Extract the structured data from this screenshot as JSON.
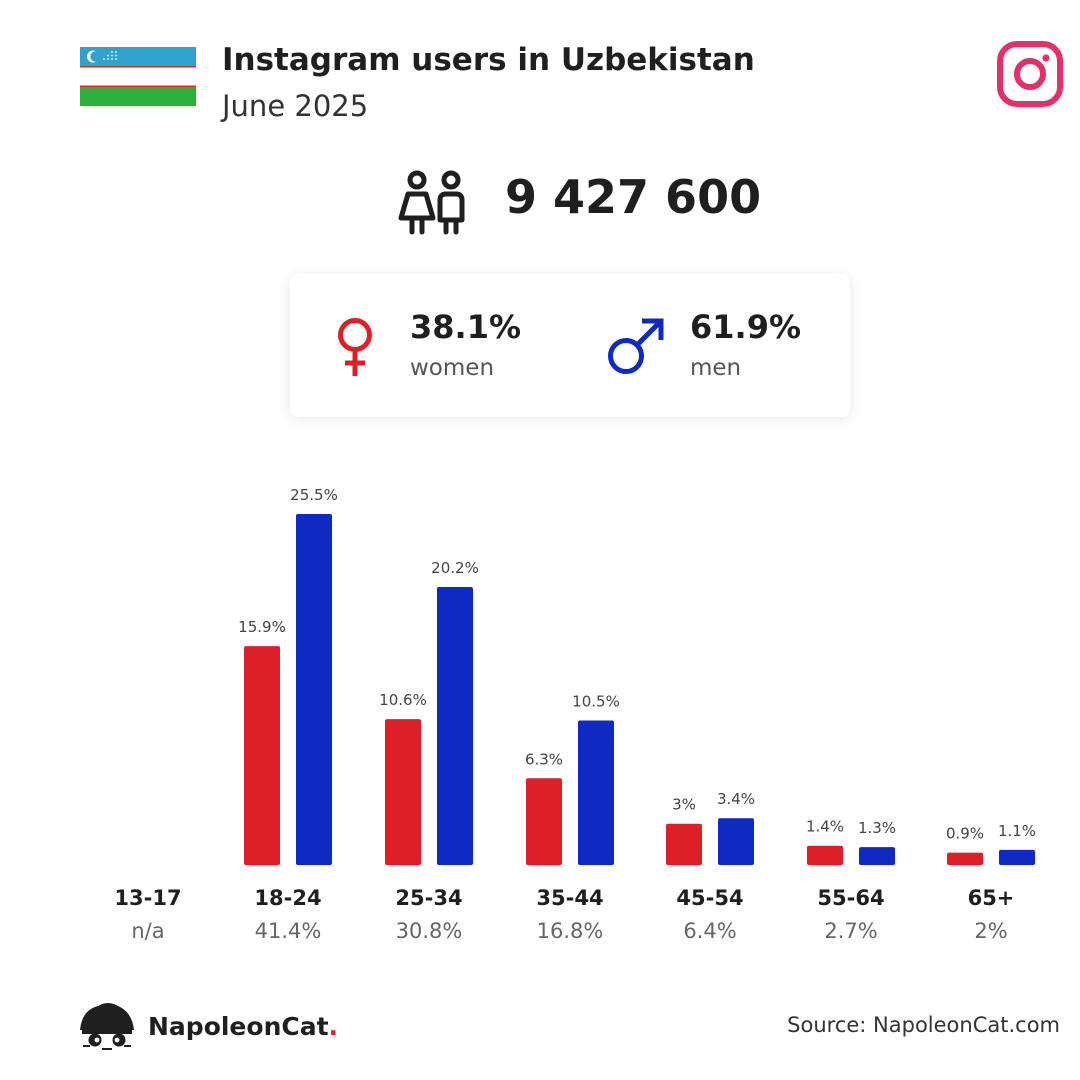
{
  "header": {
    "title": "Instagram users in Uzbekistan",
    "subtitle": "June 2025"
  },
  "total": {
    "value": "9 427 600"
  },
  "gender": {
    "women": {
      "value": "38.1%",
      "label": "women"
    },
    "men": {
      "value": "61.9%",
      "label": "men"
    }
  },
  "colors": {
    "women": "#dd1f28",
    "men": "#0f2ac2",
    "instagram": "#e1306c"
  },
  "footer": {
    "brand": "NapoleonCat",
    "brand_dot": ".",
    "source": "Source: NapoleonCat.com"
  },
  "chart_data": {
    "type": "bar",
    "categories": [
      "13-17",
      "18-24",
      "25-34",
      "35-44",
      "45-54",
      "55-64",
      "65+"
    ],
    "totals": [
      "n/a",
      "41.4%",
      "30.8%",
      "16.8%",
      "6.4%",
      "2.7%",
      "2%"
    ],
    "series": [
      {
        "name": "women",
        "values": [
          null,
          15.9,
          10.6,
          6.3,
          3,
          1.4,
          0.9
        ],
        "labels": [
          "",
          "15.9%",
          "10.6%",
          "6.3%",
          "3%",
          "1.4%",
          "0.9%"
        ]
      },
      {
        "name": "men",
        "values": [
          null,
          25.5,
          20.2,
          10.5,
          3.4,
          1.3,
          1.1
        ],
        "labels": [
          "",
          "25.5%",
          "20.2%",
          "10.5%",
          "3.4%",
          "1.3%",
          "1.1%"
        ]
      }
    ],
    "ylim": [
      0,
      25.5
    ],
    "grid": false
  }
}
